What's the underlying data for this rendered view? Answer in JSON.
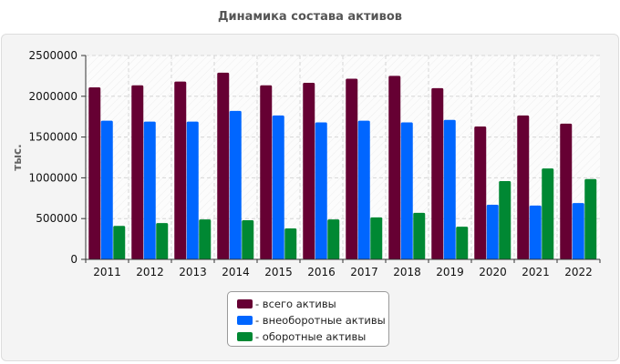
{
  "chart_data": {
    "type": "bar",
    "title": "Динамика состава активов",
    "ylabel": "тыс.",
    "xlabel": "",
    "ylim": [
      0,
      2500000
    ],
    "yticks": [
      0,
      500000,
      1000000,
      1500000,
      2000000,
      2500000
    ],
    "categories": [
      "2011",
      "2012",
      "2013",
      "2014",
      "2015",
      "2016",
      "2017",
      "2018",
      "2019",
      "2020",
      "2021",
      "2022"
    ],
    "grid": true,
    "legend_position": "bottom",
    "series": [
      {
        "name": "- всего активы",
        "color": "#660033",
        "values": [
          2110000,
          2135000,
          2180000,
          2290000,
          2135000,
          2165000,
          2215000,
          2250000,
          2100000,
          1630000,
          1765000,
          1665000
        ]
      },
      {
        "name": "- внеоборотные активы",
        "color": "#0066ff",
        "values": [
          1700000,
          1690000,
          1690000,
          1820000,
          1765000,
          1680000,
          1700000,
          1680000,
          1710000,
          670000,
          660000,
          690000
        ]
      },
      {
        "name": "- оборотные активы",
        "color": "#008833",
        "values": [
          410000,
          445000,
          490000,
          480000,
          380000,
          490000,
          515000,
          570000,
          400000,
          960000,
          1115000,
          985000
        ]
      }
    ]
  }
}
